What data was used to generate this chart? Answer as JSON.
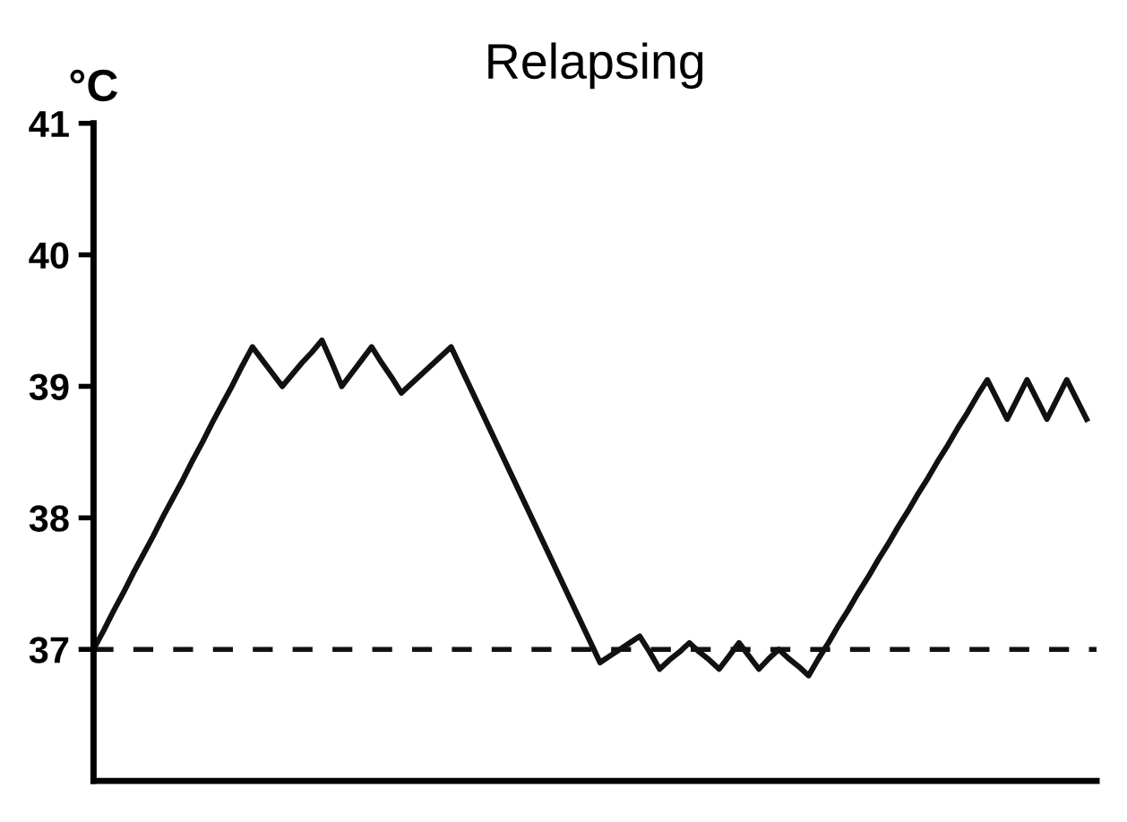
{
  "chart_data": {
    "type": "line",
    "title": "Relapsing",
    "ylabel": "°C",
    "categories": [
      null,
      null,
      null,
      null,
      null,
      null,
      null,
      null,
      null,
      null,
      null,
      null,
      null,
      null,
      null,
      null,
      null,
      null,
      null,
      null,
      null,
      null,
      null,
      null,
      null,
      null,
      null,
      null,
      null,
      null,
      null,
      null,
      null,
      null,
      null,
      null,
      null,
      null,
      null,
      null,
      null,
      null,
      null,
      null,
      null,
      null,
      null,
      null,
      null,
      null,
      null,
      null,
      null,
      null,
      null,
      null,
      null,
      null,
      null,
      null,
      null,
      null,
      null,
      null,
      null,
      null,
      null,
      null,
      null,
      null,
      null,
      null,
      null,
      null,
      null,
      null,
      null,
      null,
      null,
      null,
      null,
      null,
      null,
      null,
      null,
      null,
      null,
      null,
      null,
      null,
      null,
      null,
      null,
      null,
      null,
      null,
      null,
      null,
      null,
      null,
      null
    ],
    "series": [
      {
        "color": "#111111",
        "values": [
          37.0,
          37.14,
          37.29,
          37.43,
          37.58,
          37.72,
          37.86,
          38.01,
          38.15,
          38.29,
          38.44,
          38.58,
          38.73,
          38.87,
          39.01,
          39.16,
          39.3,
          39.2,
          39.1,
          39.0,
          39.09,
          39.18,
          39.26,
          39.35,
          39.18,
          39.0,
          39.1,
          39.2,
          39.3,
          39.18,
          39.07,
          38.95,
          39.02,
          39.09,
          39.16,
          39.23,
          39.3,
          39.14,
          38.98,
          38.82,
          38.66,
          38.5,
          38.34,
          38.18,
          38.02,
          37.86,
          37.7,
          37.54,
          37.38,
          37.22,
          37.06,
          36.9,
          36.95,
          37.0,
          37.05,
          37.1,
          36.98,
          36.85,
          36.92,
          36.98,
          37.05,
          36.98,
          36.92,
          36.85,
          36.95,
          37.05,
          36.95,
          36.85,
          36.93,
          37.0,
          36.93,
          36.87,
          36.8,
          36.93,
          37.05,
          37.18,
          37.3,
          37.43,
          37.55,
          37.68,
          37.8,
          37.93,
          38.05,
          38.18,
          38.3,
          38.43,
          38.55,
          38.68,
          38.8,
          38.93,
          39.05,
          38.9,
          38.75,
          38.9,
          39.05,
          38.9,
          38.75,
          38.9,
          39.05,
          38.9,
          38.75
        ]
      }
    ],
    "ylim": [
      36,
      41
    ],
    "yticks": [
      37,
      38,
      39,
      40,
      41
    ],
    "tick_labels": "y",
    "grid": false,
    "legend": false,
    "marker": "none",
    "line_style": "solid",
    "ref_lines": [
      {
        "axis": "y",
        "value": 37,
        "line_style": "dashed",
        "color": "#111111"
      }
    ]
  }
}
